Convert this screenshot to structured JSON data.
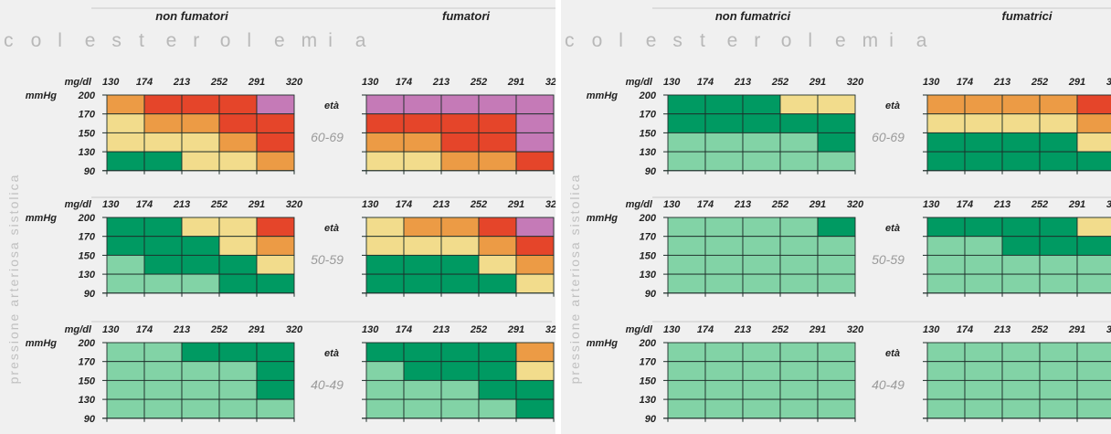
{
  "colors": {
    "light_green": "#82d3a6",
    "dark_green": "#009a62",
    "yellow": "#f2dc8c",
    "orange": "#ec9b45",
    "red": "#e5452a",
    "purple": "#c57ab7",
    "panel_bg": "#f0f0f0",
    "grid": "#1e2e2a"
  },
  "legend_colors": [
    "light_green",
    "dark_green",
    "yellow",
    "orange",
    "red",
    "purple"
  ],
  "chart_data": {
    "type": "heatmap",
    "title": "colesterolemia",
    "xlabel_unit": "mg/dl",
    "ylabel_unit": "mmHg",
    "vertical_label": "pressione arteriosa sistolica",
    "age_label": "età",
    "x": [
      "130",
      "174",
      "213",
      "252",
      "291",
      "320"
    ],
    "y": [
      "200",
      "170",
      "150",
      "130",
      "90"
    ],
    "age_groups": [
      "60-69",
      "50-59",
      "40-49"
    ],
    "panels": [
      {
        "sex": "men",
        "groups": [
          "non fumatori",
          "fumatori"
        ],
        "grids": [
          [
            [
              [
                3,
                4,
                4,
                4,
                5
              ],
              [
                2,
                3,
                3,
                4,
                4
              ],
              [
                2,
                2,
                2,
                3,
                4
              ],
              [
                1,
                1,
                2,
                2,
                3
              ]
            ],
            [
              [
                5,
                5,
                5,
                5,
                5
              ],
              [
                4,
                4,
                4,
                4,
                5
              ],
              [
                3,
                3,
                4,
                4,
                5
              ],
              [
                2,
                2,
                3,
                3,
                4
              ]
            ]
          ],
          [
            [
              [
                1,
                1,
                2,
                2,
                4
              ],
              [
                1,
                1,
                1,
                2,
                3
              ],
              [
                0,
                1,
                1,
                1,
                2
              ],
              [
                0,
                0,
                0,
                1,
                1
              ]
            ],
            [
              [
                2,
                3,
                3,
                4,
                5
              ],
              [
                2,
                2,
                2,
                3,
                4
              ],
              [
                1,
                1,
                1,
                2,
                3
              ],
              [
                1,
                1,
                1,
                1,
                2
              ]
            ]
          ],
          [
            [
              [
                0,
                0,
                1,
                1,
                1
              ],
              [
                0,
                0,
                0,
                0,
                1
              ],
              [
                0,
                0,
                0,
                0,
                1
              ],
              [
                0,
                0,
                0,
                0,
                0
              ]
            ],
            [
              [
                1,
                1,
                1,
                1,
                3
              ],
              [
                0,
                1,
                1,
                1,
                2
              ],
              [
                0,
                0,
                0,
                1,
                1
              ],
              [
                0,
                0,
                0,
                0,
                1
              ]
            ]
          ]
        ]
      },
      {
        "sex": "women",
        "groups": [
          "non fumatrici",
          "fumatrici"
        ],
        "grids": [
          [
            [
              [
                1,
                1,
                1,
                2,
                2
              ],
              [
                1,
                1,
                1,
                1,
                1
              ],
              [
                0,
                0,
                0,
                0,
                1
              ],
              [
                0,
                0,
                0,
                0,
                0
              ]
            ],
            [
              [
                3,
                3,
                3,
                3,
                4
              ],
              [
                2,
                2,
                2,
                2,
                3
              ],
              [
                1,
                1,
                1,
                1,
                2
              ],
              [
                1,
                1,
                1,
                1,
                1
              ]
            ]
          ],
          [
            [
              [
                0,
                0,
                0,
                0,
                1
              ],
              [
                0,
                0,
                0,
                0,
                0
              ],
              [
                0,
                0,
                0,
                0,
                0
              ],
              [
                0,
                0,
                0,
                0,
                0
              ]
            ],
            [
              [
                1,
                1,
                1,
                1,
                2
              ],
              [
                0,
                0,
                1,
                1,
                1
              ],
              [
                0,
                0,
                0,
                0,
                0
              ],
              [
                0,
                0,
                0,
                0,
                0
              ]
            ]
          ],
          [
            [
              [
                0,
                0,
                0,
                0,
                0
              ],
              [
                0,
                0,
                0,
                0,
                0
              ],
              [
                0,
                0,
                0,
                0,
                0
              ],
              [
                0,
                0,
                0,
                0,
                0
              ]
            ],
            [
              [
                0,
                0,
                0,
                0,
                0
              ],
              [
                0,
                0,
                0,
                0,
                0
              ],
              [
                0,
                0,
                0,
                0,
                0
              ],
              [
                0,
                0,
                0,
                0,
                0
              ]
            ]
          ]
        ]
      }
    ]
  }
}
